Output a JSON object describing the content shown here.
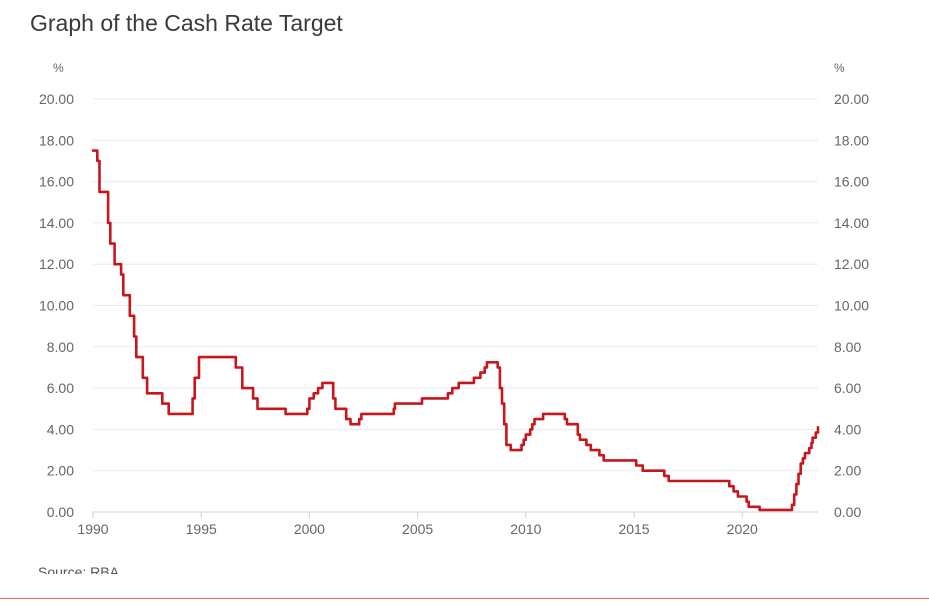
{
  "chart_data": {
    "type": "line",
    "title": "Graph of the Cash Rate Target",
    "unit_left": "%",
    "unit_right": "%",
    "ylim": [
      0,
      20
    ],
    "y_ticks": [
      "0.00",
      "2.00",
      "4.00",
      "6.00",
      "8.00",
      "10.00",
      "12.00",
      "14.00",
      "16.00",
      "18.00",
      "20.00"
    ],
    "xlim": [
      1990,
      2023.5
    ],
    "x_ticks": [
      "1990",
      "1995",
      "2000",
      "2005",
      "2010",
      "2015",
      "2020"
    ],
    "grid": true,
    "source": "Source: RBA",
    "series": [
      {
        "name": "Cash Rate Target",
        "color": "#c8161d",
        "step": true,
        "points": [
          [
            1990.0,
            17.5
          ],
          [
            1990.2,
            17.0
          ],
          [
            1990.3,
            15.5
          ],
          [
            1990.7,
            14.0
          ],
          [
            1990.8,
            13.0
          ],
          [
            1991.0,
            12.0
          ],
          [
            1991.3,
            11.5
          ],
          [
            1991.4,
            10.5
          ],
          [
            1991.7,
            9.5
          ],
          [
            1991.9,
            8.5
          ],
          [
            1992.0,
            7.5
          ],
          [
            1992.3,
            6.5
          ],
          [
            1992.5,
            5.75
          ],
          [
            1993.2,
            5.25
          ],
          [
            1993.5,
            4.75
          ],
          [
            1994.6,
            5.5
          ],
          [
            1994.7,
            6.5
          ],
          [
            1994.9,
            7.5
          ],
          [
            1996.6,
            7.0
          ],
          [
            1996.9,
            6.0
          ],
          [
            1997.4,
            5.5
          ],
          [
            1997.6,
            5.0
          ],
          [
            1998.9,
            4.75
          ],
          [
            1999.9,
            5.0
          ],
          [
            2000.0,
            5.5
          ],
          [
            2000.2,
            5.75
          ],
          [
            2000.4,
            6.0
          ],
          [
            2000.6,
            6.25
          ],
          [
            2001.1,
            5.5
          ],
          [
            2001.2,
            5.0
          ],
          [
            2001.7,
            4.5
          ],
          [
            2001.9,
            4.25
          ],
          [
            2002.3,
            4.5
          ],
          [
            2002.4,
            4.75
          ],
          [
            2003.9,
            5.0
          ],
          [
            2003.95,
            5.25
          ],
          [
            2005.2,
            5.5
          ],
          [
            2006.4,
            5.75
          ],
          [
            2006.6,
            6.0
          ],
          [
            2006.9,
            6.25
          ],
          [
            2007.6,
            6.5
          ],
          [
            2007.9,
            6.75
          ],
          [
            2008.1,
            7.0
          ],
          [
            2008.2,
            7.25
          ],
          [
            2008.7,
            7.0
          ],
          [
            2008.8,
            6.0
          ],
          [
            2008.9,
            5.25
          ],
          [
            2009.0,
            4.25
          ],
          [
            2009.1,
            3.25
          ],
          [
            2009.3,
            3.0
          ],
          [
            2009.8,
            3.25
          ],
          [
            2009.9,
            3.5
          ],
          [
            2010.0,
            3.75
          ],
          [
            2010.2,
            4.0
          ],
          [
            2010.3,
            4.25
          ],
          [
            2010.4,
            4.5
          ],
          [
            2010.8,
            4.75
          ],
          [
            2011.8,
            4.5
          ],
          [
            2011.9,
            4.25
          ],
          [
            2012.4,
            3.75
          ],
          [
            2012.5,
            3.5
          ],
          [
            2012.8,
            3.25
          ],
          [
            2013.0,
            3.0
          ],
          [
            2013.4,
            2.75
          ],
          [
            2013.6,
            2.5
          ],
          [
            2015.1,
            2.25
          ],
          [
            2015.4,
            2.0
          ],
          [
            2016.4,
            1.75
          ],
          [
            2016.6,
            1.5
          ],
          [
            2019.4,
            1.25
          ],
          [
            2019.6,
            1.0
          ],
          [
            2019.8,
            0.75
          ],
          [
            2020.2,
            0.5
          ],
          [
            2020.3,
            0.25
          ],
          [
            2020.8,
            0.1
          ],
          [
            2022.3,
            0.35
          ],
          [
            2022.4,
            0.85
          ],
          [
            2022.5,
            1.35
          ],
          [
            2022.6,
            1.85
          ],
          [
            2022.7,
            2.35
          ],
          [
            2022.8,
            2.6
          ],
          [
            2022.9,
            2.85
          ],
          [
            2023.1,
            3.1
          ],
          [
            2023.2,
            3.35
          ],
          [
            2023.25,
            3.6
          ],
          [
            2023.4,
            3.85
          ],
          [
            2023.5,
            4.1
          ]
        ]
      }
    ]
  },
  "colors": {
    "grid": "#e8ecf0",
    "axis": "#c8d0dc",
    "tick_text": "#666666",
    "bottom_rule": "#e2685f"
  }
}
